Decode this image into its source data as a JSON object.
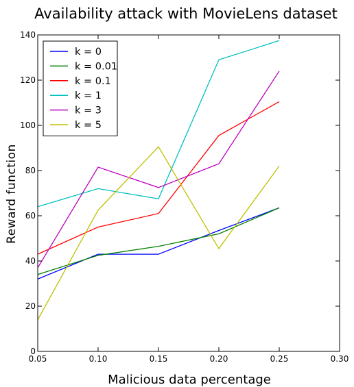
{
  "chart_data": {
    "type": "line",
    "title": "Availability attack with MovieLens dataset",
    "xlabel": "Malicious data percentage",
    "ylabel": "Reward function",
    "x": [
      0.05,
      0.1,
      0.15,
      0.2,
      0.25
    ],
    "xlim": [
      0.05,
      0.3
    ],
    "ylim": [
      0,
      140
    ],
    "xticks": [
      "0.05",
      "0.10",
      "0.15",
      "0.20",
      "0.25",
      "0.30"
    ],
    "yticks": [
      "0",
      "20",
      "40",
      "60",
      "80",
      "100",
      "120",
      "140"
    ],
    "grid": false,
    "legend_position": "top-left",
    "series": [
      {
        "name": "k = 0",
        "color": "#0000ff",
        "values": [
          32,
          43,
          43,
          53.5,
          63.5
        ]
      },
      {
        "name": "k = 0.01",
        "color": "#008000",
        "values": [
          34,
          42.5,
          46.5,
          52,
          63.5
        ]
      },
      {
        "name": "k = 0.1",
        "color": "#ff0000",
        "values": [
          43,
          55,
          61,
          95.5,
          110.5
        ]
      },
      {
        "name": "k = 1",
        "color": "#00bfbf",
        "values": [
          64,
          72,
          67.5,
          129,
          137.5
        ]
      },
      {
        "name": "k = 3",
        "color": "#bf00bf",
        "values": [
          37,
          81.5,
          72.5,
          83,
          124
        ]
      },
      {
        "name": "k = 5",
        "color": "#bfbf00",
        "values": [
          14,
          62.5,
          90.5,
          45.5,
          82
        ]
      }
    ]
  }
}
